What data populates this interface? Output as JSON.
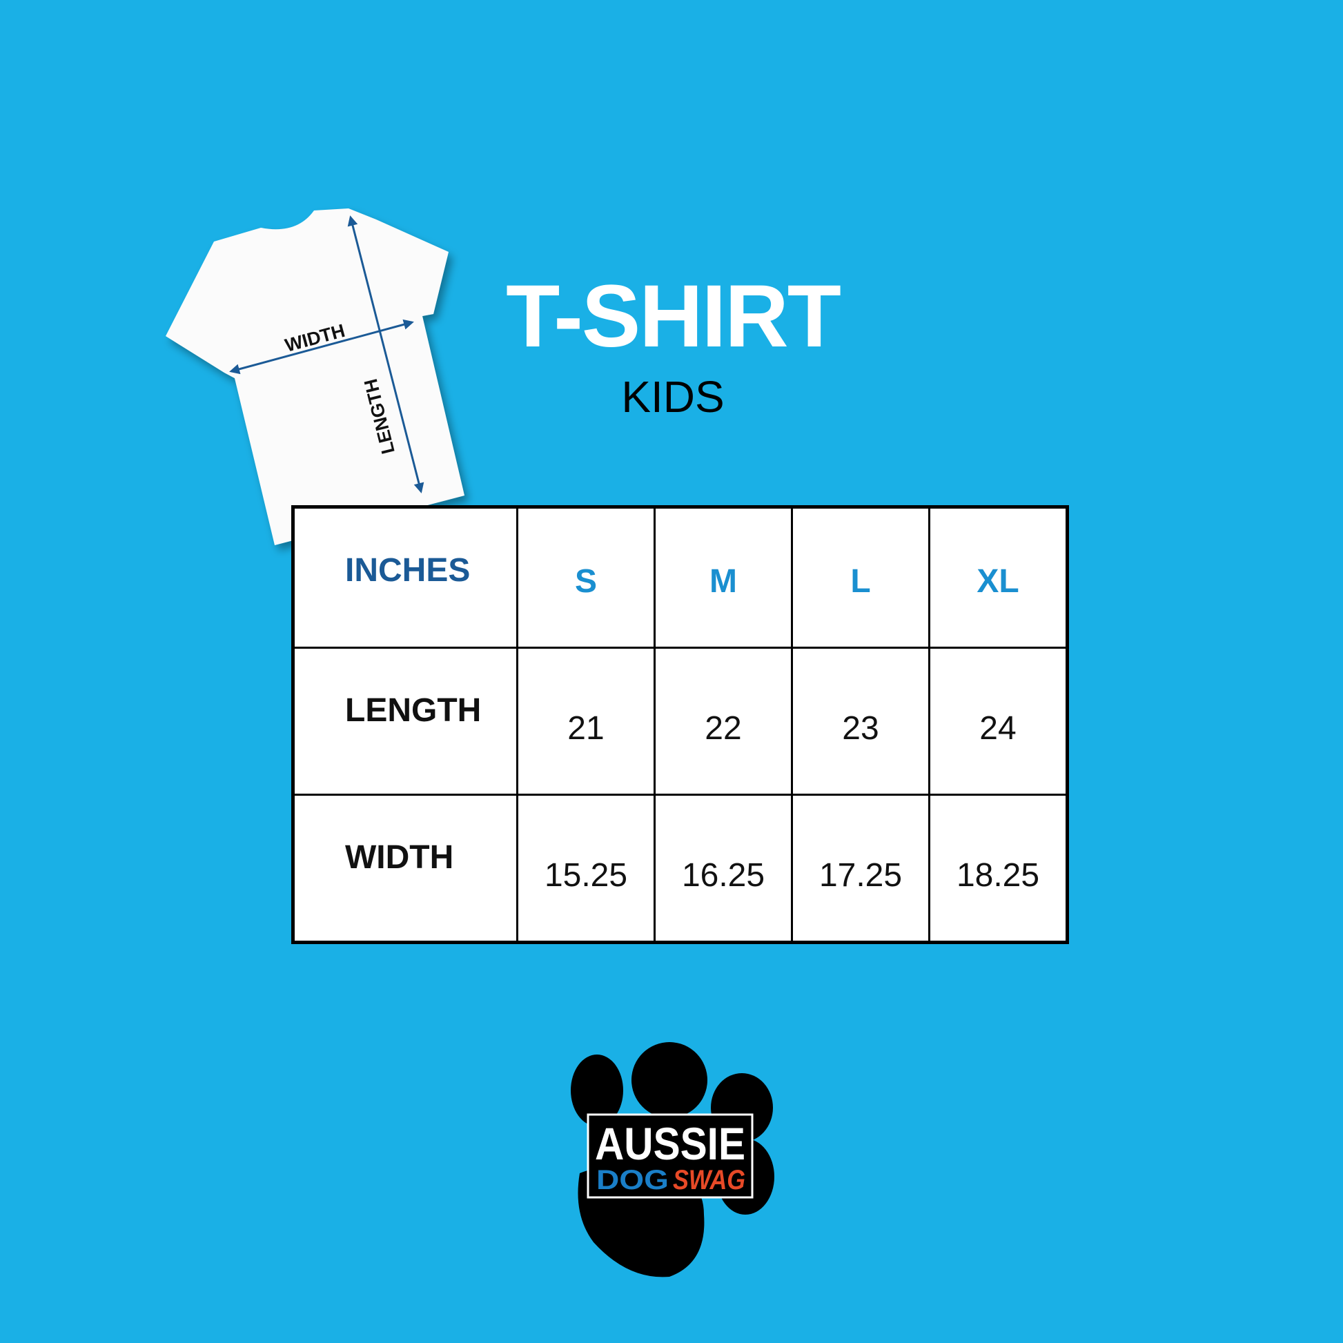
{
  "header": {
    "title": "T-SHIRT",
    "subtitle": "KIDS"
  },
  "diagram": {
    "width_label": "WIDTH",
    "length_label": "LENGTH",
    "arrow_color": "#1b5a96"
  },
  "table": {
    "unit_label": "INCHES",
    "sizes": [
      "S",
      "M",
      "L",
      "XL"
    ],
    "rows": [
      {
        "label": "LENGTH",
        "values": [
          "21",
          "22",
          "23",
          "24"
        ]
      },
      {
        "label": "WIDTH",
        "values": [
          "15.25",
          "16.25",
          "17.25",
          "18.25"
        ]
      }
    ]
  },
  "logo": {
    "line1": "AUSSIE",
    "line2a": "DOG",
    "line2b": "SWAG"
  },
  "colors": {
    "background": "#1ab0e6",
    "header_text": "#1b5a96",
    "size_text": "#1a8fd0",
    "logo_blue": "#1a7fc8",
    "logo_red": "#e84a27"
  }
}
